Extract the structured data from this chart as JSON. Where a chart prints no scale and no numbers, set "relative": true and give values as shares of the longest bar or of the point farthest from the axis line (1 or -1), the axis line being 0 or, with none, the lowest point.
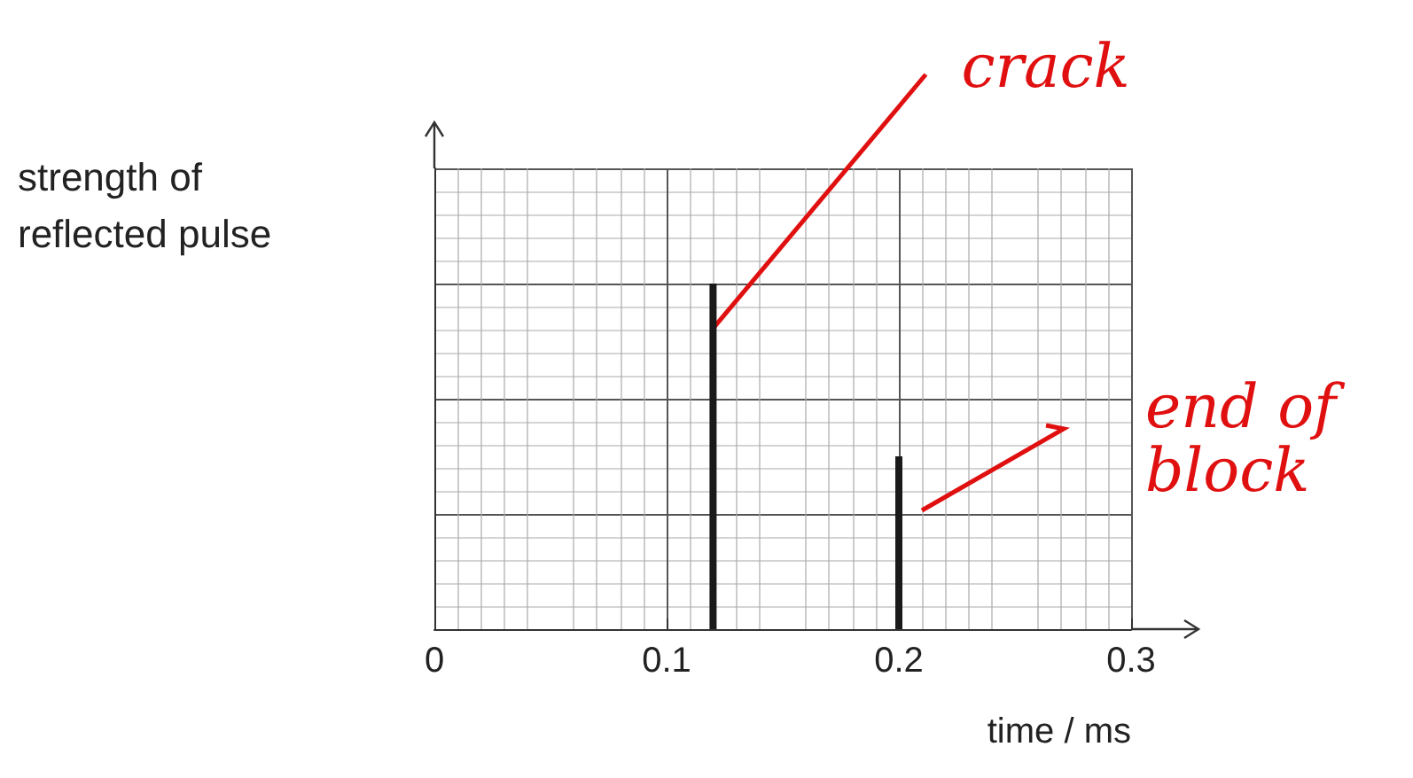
{
  "chart_data": {
    "type": "bar",
    "relative": true,
    "ylabel": "strength of\nreflected pulse",
    "xlabel": "time / ms",
    "x": [
      0.12,
      0.2
    ],
    "values": [
      1,
      0.5
    ],
    "color": "#1a1a1a",
    "xlim": [
      0,
      0.3
    ],
    "xticks": [
      0,
      0.1,
      0.2,
      0.3
    ],
    "grid": true,
    "annotations": [
      {
        "text": "crack",
        "x": 0.12,
        "y": 0.87
      },
      "end of\nblock"
    ]
  }
}
